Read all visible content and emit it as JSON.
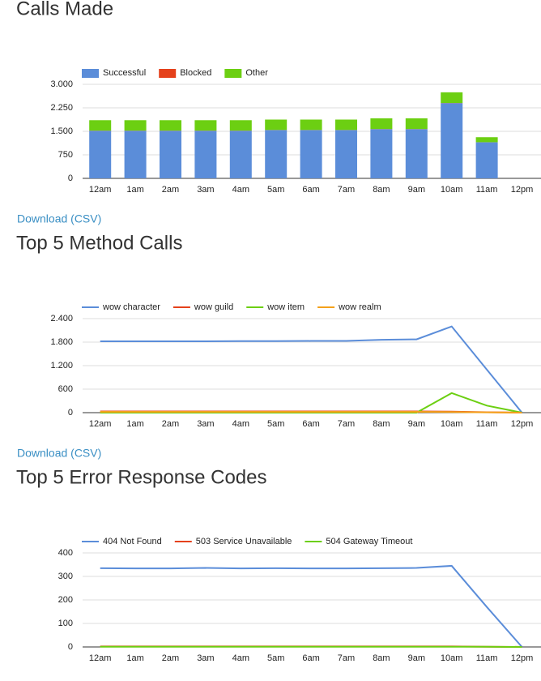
{
  "chart_data": [
    {
      "type": "bar",
      "stacked": true,
      "title": "Calls Made",
      "categories": [
        "12am",
        "1am",
        "2am",
        "3am",
        "4am",
        "5am",
        "6am",
        "7am",
        "8am",
        "9am",
        "10am",
        "11am",
        "12pm"
      ],
      "series": [
        {
          "name": "Successful",
          "color": "#5b8dd9",
          "values": [
            1520,
            1520,
            1520,
            1520,
            1520,
            1540,
            1540,
            1540,
            1570,
            1570,
            2400,
            1150,
            0
          ]
        },
        {
          "name": "Blocked",
          "color": "#e5411b",
          "values": [
            5,
            5,
            5,
            5,
            5,
            5,
            5,
            5,
            5,
            5,
            5,
            3,
            0
          ]
        },
        {
          "name": "Other",
          "color": "#6ccf12",
          "values": [
            330,
            330,
            330,
            330,
            330,
            330,
            330,
            330,
            340,
            340,
            340,
            160,
            0
          ]
        }
      ],
      "ylim": [
        0,
        3000
      ],
      "yticks": [
        0,
        {
          "value": 750,
          "label": "750"
        },
        {
          "value": 1500,
          "label": "1.500"
        },
        {
          "value": 2250,
          "label": "2.250"
        },
        {
          "value": 3000,
          "label": "3.000"
        }
      ],
      "grid": true,
      "legend": "top"
    },
    {
      "type": "line",
      "title": "Top 5 Method Calls",
      "categories": [
        "12am",
        "1am",
        "2am",
        "3am",
        "4am",
        "5am",
        "6am",
        "7am",
        "8am",
        "9am",
        "10am",
        "11am",
        "12pm"
      ],
      "series": [
        {
          "name": "wow character",
          "color": "#5b8dd9",
          "values": [
            1820,
            1820,
            1820,
            1820,
            1825,
            1825,
            1830,
            1830,
            1860,
            1870,
            2200,
            1100,
            0
          ]
        },
        {
          "name": "wow guild",
          "color": "#e5411b",
          "values": [
            30,
            30,
            30,
            30,
            30,
            30,
            30,
            30,
            30,
            30,
            25,
            10,
            0
          ]
        },
        {
          "name": "wow item",
          "color": "#6ccf12",
          "values": [
            0,
            0,
            0,
            0,
            0,
            0,
            0,
            0,
            0,
            0,
            500,
            180,
            0
          ]
        },
        {
          "name": "wow realm",
          "color": "#f4a11b",
          "values": [
            20,
            20,
            20,
            20,
            20,
            20,
            20,
            20,
            20,
            20,
            15,
            8,
            0
          ]
        }
      ],
      "ylim": [
        0,
        2400
      ],
      "yticks": [
        0,
        600,
        {
          "value": 1200,
          "label": "1.200"
        },
        {
          "value": 1800,
          "label": "1.800"
        },
        {
          "value": 2400,
          "label": "2.400"
        }
      ],
      "grid": true,
      "legend": "top"
    },
    {
      "type": "line",
      "title": "Top 5 Error Response Codes",
      "categories": [
        "12am",
        "1am",
        "2am",
        "3am",
        "4am",
        "5am",
        "6am",
        "7am",
        "8am",
        "9am",
        "10am",
        "11am",
        "12pm"
      ],
      "series": [
        {
          "name": "404 Not Found",
          "color": "#5b8dd9",
          "values": [
            335,
            334,
            334,
            336,
            334,
            335,
            334,
            334,
            335,
            336,
            345,
            170,
            0
          ]
        },
        {
          "name": "503 Service Unavailable",
          "color": "#e5411b",
          "values": [
            2,
            2,
            2,
            2,
            2,
            2,
            2,
            2,
            2,
            2,
            2,
            1,
            0
          ]
        },
        {
          "name": "504 Gateway Timeout",
          "color": "#6ccf12",
          "values": [
            1,
            1,
            1,
            1,
            1,
            1,
            1,
            1,
            1,
            1,
            1,
            1,
            0
          ]
        }
      ],
      "ylim": [
        0,
        400
      ],
      "yticks": [
        0,
        100,
        200,
        300,
        400
      ],
      "grid": true,
      "legend": "top"
    }
  ],
  "links": [
    "Download (CSV)",
    "Download (CSV)"
  ]
}
